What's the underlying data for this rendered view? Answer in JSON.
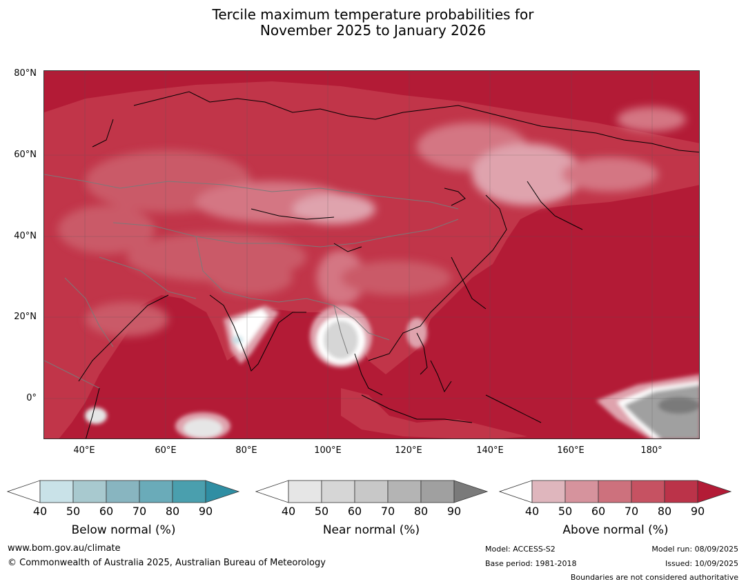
{
  "title": {
    "line1": "Tercile maximum temperature probabilities for",
    "line2": "November 2025 to January 2026"
  },
  "map": {
    "lat_labels": [
      "80°N",
      "60°N",
      "40°N",
      "20°N",
      "0°"
    ],
    "lon_labels": [
      "40°E",
      "60°E",
      "80°E",
      "100°E",
      "120°E",
      "140°E",
      "160°E",
      "180°"
    ],
    "colors": {
      "ocean_base": "#b31b36",
      "land_base": "#c13549",
      "above_70": "#ca5a68",
      "above_60": "#d47683",
      "above_50": "#dfa3ad",
      "neutral_white": "#ffffff",
      "near_60": "#c8c8c8",
      "near_80": "#a0a0a0",
      "below_light": "#c9e2e8",
      "coastline": "#000000",
      "borders": "#7a7a7a"
    }
  },
  "colorbars": [
    {
      "name": "below",
      "label": "Below normal (%)",
      "ticks": [
        "40",
        "50",
        "60",
        "70",
        "80",
        "90"
      ],
      "colors": [
        "#ffffff",
        "#c9e2e8",
        "#a8c9cf",
        "#88b5c0",
        "#6aabb9",
        "#4a9fae",
        "#2f8ea3"
      ]
    },
    {
      "name": "near",
      "label": "Near normal (%)",
      "ticks": [
        "40",
        "50",
        "60",
        "70",
        "80",
        "90"
      ],
      "colors": [
        "#ffffff",
        "#e6e6e6",
        "#d6d6d6",
        "#c8c8c8",
        "#b4b4b4",
        "#a0a0a0",
        "#7a7a7a"
      ]
    },
    {
      "name": "above",
      "label": "Above normal (%)",
      "ticks": [
        "40",
        "50",
        "60",
        "70",
        "80",
        "90"
      ],
      "colors": [
        "#ffffff",
        "#dfb6bd",
        "#d6939d",
        "#cd717d",
        "#c65262",
        "#bb3349",
        "#b31b36"
      ]
    }
  ],
  "footer": {
    "website": "www.bom.gov.au/climate",
    "copyright": "© Commonwealth of Australia 2025, Australian Bureau of Meteorology",
    "model": "Model: ACCESS-S2",
    "base_period": "Base period: 1981-2018",
    "model_run": "Model run: 08/09/2025",
    "issued": "Issued: 10/09/2025",
    "boundaries_note": "Boundaries are not considered authoritative"
  }
}
